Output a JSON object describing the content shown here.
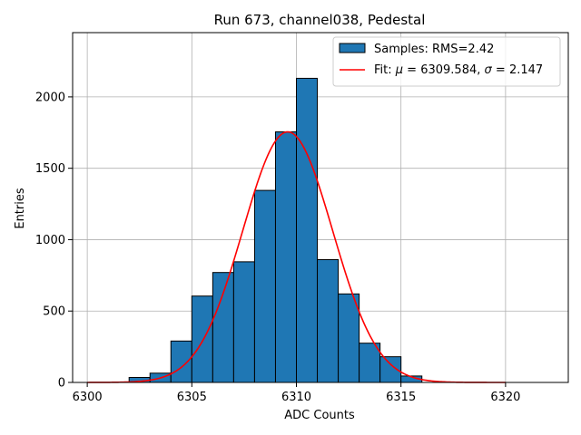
{
  "chart_data": {
    "type": "bar",
    "title": "Run 673, channel038, Pedestal",
    "xlabel": "ADC Counts",
    "ylabel": "Entries",
    "xlim": [
      6299.3,
      6323.0
    ],
    "ylim": [
      0,
      2450
    ],
    "xticks": [
      6300,
      6305,
      6310,
      6315,
      6320
    ],
    "yticks": [
      0,
      500,
      1000,
      1500,
      2000
    ],
    "grid": true,
    "legend_position": "top-right",
    "bar_color": "#1f77b4",
    "fit_color": "#ff0000",
    "histogram": {
      "name": "Samples: RMS=2.42",
      "bin_edges": [
        6302,
        6303,
        6304,
        6305,
        6306,
        6307,
        6308,
        6309,
        6310,
        6311,
        6312,
        6313,
        6314,
        6315,
        6316
      ],
      "counts": [
        35,
        65,
        290,
        605,
        770,
        845,
        1345,
        1755,
        2130,
        860,
        620,
        275,
        180,
        45
      ]
    },
    "fit": {
      "name_prefix": "Fit: ",
      "mu_symbol": "μ",
      "sigma_symbol": "σ",
      "mu": 6309.584,
      "sigma": 2.147,
      "mu_text": "6309.584",
      "sigma_text": "2.147",
      "amplitude": 1755,
      "x_range": [
        6300,
        6320
      ]
    }
  }
}
